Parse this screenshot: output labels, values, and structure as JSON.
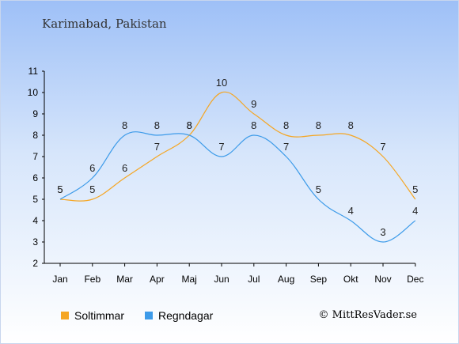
{
  "chart_data": {
    "type": "line",
    "title": "Karimabad, Pakistan",
    "categories": [
      "Jan",
      "Feb",
      "Mar",
      "Apr",
      "Maj",
      "Jun",
      "Jul",
      "Aug",
      "Sep",
      "Okt",
      "Nov",
      "Dec"
    ],
    "series": [
      {
        "name": "Soltimmar",
        "color": "#f5a623",
        "values": [
          5,
          5,
          6,
          7,
          8,
          10,
          9,
          8,
          8,
          8,
          7,
          5
        ]
      },
      {
        "name": "Regndagar",
        "color": "#3d9be9",
        "values": [
          5,
          6,
          8,
          8,
          8,
          7,
          8,
          7,
          5,
          4,
          3,
          4
        ]
      }
    ],
    "ylim": [
      2,
      11
    ],
    "yticks": [
      2,
      3,
      4,
      5,
      6,
      7,
      8,
      9,
      10,
      11
    ],
    "grid": false,
    "legend_position": "bottom-left"
  },
  "credit": "© MittResVader.se"
}
